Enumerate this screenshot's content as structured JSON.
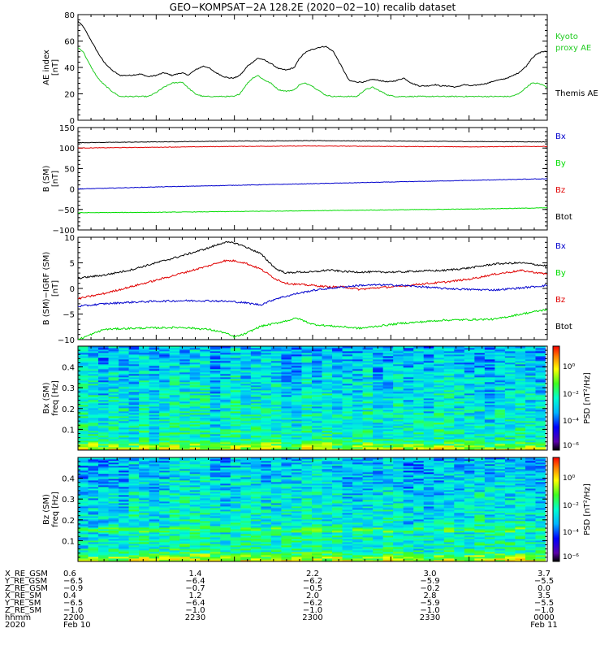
{
  "title": "GEO−KOMPSAT−2A 128.2E (2020−02−10) recalib dataset",
  "colors": {
    "black": "#000000",
    "red": "#e00000",
    "blue": "#0000cc",
    "green": "#00dd00",
    "kyoto": "#22cc22"
  },
  "chart_data": [
    {
      "id": "ae",
      "type": "line",
      "ylabel": "AE index",
      "yunit": "[nT]",
      "ylim": [
        0,
        80
      ],
      "yticks": [
        0,
        20,
        40,
        60,
        80
      ],
      "legend": [
        {
          "label": "Kyoto",
          "color": "#22cc22"
        },
        {
          "label": "proxy AE",
          "color": "#22cc22"
        },
        {
          "label": "Themis AE",
          "color": "#000000"
        }
      ],
      "series": [
        {
          "name": "Themis AE",
          "color": "#000000",
          "x": [
            0,
            2,
            4,
            6,
            8,
            10,
            13,
            16,
            20,
            24,
            27,
            30,
            33,
            36,
            40,
            42,
            45,
            48,
            50,
            52,
            54,
            56,
            58,
            60,
            62,
            63.5,
            65,
            67,
            69,
            71,
            74,
            77,
            80,
            83,
            85,
            87,
            89,
            92,
            95,
            98,
            101,
            104,
            107,
            110,
            113,
            116,
            119,
            122,
            125,
            128,
            131,
            134,
            137,
            139,
            142,
            145,
            148,
            151,
            154,
            157,
            160,
            163,
            166,
            169,
            172,
            174,
            176,
            178,
            180
          ],
          "y": [
            75,
            71,
            64,
            57,
            50,
            44,
            38,
            34,
            34,
            35,
            33,
            34,
            36,
            34,
            36,
            34,
            38,
            41,
            40,
            37,
            35,
            33,
            32,
            32,
            34,
            37,
            41,
            44,
            47,
            46,
            43,
            39,
            38,
            40,
            47,
            51,
            53,
            55,
            56,
            52,
            41,
            30,
            29,
            29,
            31,
            30,
            29,
            30,
            32,
            28,
            26,
            26,
            27,
            26,
            26,
            25,
            27,
            26,
            27,
            28,
            30,
            31,
            33,
            36,
            41,
            47,
            50,
            52,
            52
          ]
        },
        {
          "name": "Kyoto proxy AE",
          "color": "#22cc22",
          "x": [
            0,
            2,
            4,
            6,
            8,
            10,
            13,
            16,
            20,
            24,
            27,
            30,
            33,
            36,
            40,
            42,
            45,
            48,
            50,
            52,
            54,
            56,
            58,
            60,
            62,
            63.5,
            65,
            67,
            69,
            71,
            74,
            77,
            80,
            83,
            85,
            87,
            89,
            92,
            95,
            98,
            101,
            104,
            107,
            110,
            113,
            116,
            119,
            122,
            125,
            128,
            131,
            134,
            137,
            139,
            142,
            145,
            148,
            151,
            154,
            157,
            160,
            163,
            166,
            169,
            172,
            174,
            176,
            178,
            180
          ],
          "y": [
            55,
            52,
            44,
            37,
            31,
            27,
            22,
            18,
            18,
            18,
            18,
            21,
            25,
            28,
            29,
            25,
            20,
            18,
            18,
            18,
            18,
            18,
            18,
            18,
            20,
            24,
            28,
            32,
            34,
            31,
            28,
            23,
            22,
            23,
            27,
            28,
            27,
            23,
            19,
            18,
            18,
            18,
            18,
            23,
            25,
            22,
            19,
            18,
            18,
            18,
            18,
            18,
            18,
            18,
            18,
            18,
            18,
            18,
            18,
            18,
            18,
            18,
            18,
            20,
            25,
            28,
            28,
            27,
            25
          ]
        }
      ]
    },
    {
      "id": "bsm",
      "type": "line",
      "ylabel": "B (SM)",
      "yunit": "[nT]",
      "ylim": [
        -100,
        150
      ],
      "yticks": [
        -100,
        -50,
        0,
        50,
        100,
        150
      ],
      "legend": [
        {
          "label": "Bx",
          "color": "#0000cc"
        },
        {
          "label": "By",
          "color": "#00dd00"
        },
        {
          "label": "Bz",
          "color": "#e00000"
        },
        {
          "label": "Btot",
          "color": "#000000"
        }
      ],
      "series": [
        {
          "name": "Btot",
          "color": "#000000",
          "x": [
            0,
            30,
            60,
            90,
            120,
            150,
            180
          ],
          "y": [
            113,
            115,
            117,
            118,
            117,
            116,
            115
          ]
        },
        {
          "name": "Bz",
          "color": "#e00000",
          "x": [
            0,
            30,
            60,
            90,
            120,
            150,
            180
          ],
          "y": [
            100,
            102,
            104,
            105,
            104,
            103,
            104
          ]
        },
        {
          "name": "Bx",
          "color": "#0000cc",
          "x": [
            0,
            30,
            60,
            90,
            120,
            150,
            180
          ],
          "y": [
            0,
            5,
            9,
            13,
            17,
            21,
            25
          ]
        },
        {
          "name": "By",
          "color": "#00dd00",
          "x": [
            0,
            30,
            60,
            90,
            120,
            150,
            180
          ],
          "y": [
            -58,
            -57,
            -55,
            -53,
            -51,
            -49,
            -46
          ]
        }
      ]
    },
    {
      "id": "dbsm",
      "type": "line",
      "ylabel": "B (SM)−IGRF (SM)",
      "yunit": "[nT]",
      "ylim": [
        -10,
        10
      ],
      "yticks": [
        -10,
        -5,
        0,
        5,
        10
      ],
      "legend": [
        {
          "label": "Bx",
          "color": "#0000cc"
        },
        {
          "label": "By",
          "color": "#00dd00"
        },
        {
          "label": "Bz",
          "color": "#e00000"
        },
        {
          "label": "Btot",
          "color": "#000000"
        }
      ],
      "series": [
        {
          "name": "Btot",
          "color": "#000000",
          "x": [
            0,
            10,
            20,
            30,
            40,
            50,
            56,
            60,
            64,
            70,
            76,
            80,
            84,
            90,
            96,
            102,
            108,
            116,
            124,
            130,
            140,
            150,
            160,
            170,
            180
          ],
          "y": [
            2,
            2.6,
            3.6,
            5,
            6.4,
            7.9,
            9,
            8.9,
            8.2,
            6.8,
            3.8,
            3,
            3.2,
            3.2,
            3.6,
            3.3,
            3.2,
            3.2,
            3.2,
            3.4,
            3.5,
            4,
            4.8,
            5,
            4.4
          ]
        },
        {
          "name": "Bz",
          "color": "#e00000",
          "x": [
            0,
            10,
            20,
            30,
            40,
            50,
            56,
            60,
            64,
            70,
            76,
            80,
            84,
            90,
            96,
            102,
            108,
            116,
            124,
            130,
            140,
            150,
            160,
            170,
            180
          ],
          "y": [
            -2,
            -1,
            0.3,
            1.6,
            3,
            4.4,
            5.4,
            5.4,
            5,
            3.8,
            1.8,
            1,
            0.8,
            0.6,
            0.3,
            0.3,
            -0.2,
            0.2,
            0.4,
            0.8,
            1.2,
            1.8,
            2.8,
            3.5,
            2.8
          ]
        },
        {
          "name": "Bx",
          "color": "#0000cc",
          "x": [
            0,
            10,
            20,
            30,
            40,
            50,
            56,
            60,
            64,
            70,
            76,
            80,
            84,
            90,
            96,
            102,
            108,
            116,
            124,
            130,
            140,
            150,
            160,
            170,
            180
          ],
          "y": [
            -3.5,
            -3,
            -2.7,
            -2.5,
            -2.4,
            -2.4,
            -2.5,
            -2.6,
            -2.8,
            -3.2,
            -2,
            -1.5,
            -1,
            -0.4,
            0,
            0.3,
            0.6,
            0.7,
            0.6,
            0.4,
            0,
            -0.2,
            -0.3,
            0.1,
            0.6
          ]
        },
        {
          "name": "By",
          "color": "#00dd00",
          "x": [
            0,
            10,
            20,
            30,
            40,
            50,
            56,
            60,
            64,
            70,
            76,
            80,
            84,
            90,
            96,
            102,
            108,
            116,
            124,
            130,
            140,
            150,
            160,
            170,
            180
          ],
          "y": [
            -10,
            -8,
            -7.8,
            -7.7,
            -7.6,
            -8,
            -8.6,
            -9.5,
            -8.9,
            -7.4,
            -6.8,
            -6.3,
            -5.8,
            -7,
            -7.3,
            -7.5,
            -7.8,
            -7.3,
            -6.8,
            -6.6,
            -6.2,
            -6.1,
            -6,
            -5,
            -4.1
          ]
        }
      ]
    },
    {
      "id": "bxspec",
      "type": "heatmap",
      "ylabel": "Bx (SM)",
      "yunit": "freq [Hz]",
      "ylim": [
        0,
        0.5
      ],
      "yticks": [
        0.1,
        0.2,
        0.3,
        0.4
      ],
      "colorbar": {
        "label": "PSD [nT²/Hz]",
        "ticks": [
          "10⁰",
          "10⁻²",
          "10⁻⁴",
          "10⁻⁶"
        ]
      }
    },
    {
      "id": "bzspec",
      "type": "heatmap",
      "ylabel": "Bz (SM)",
      "yunit": "freq [Hz]",
      "ylim": [
        0,
        0.5
      ],
      "yticks": [
        0.1,
        0.2,
        0.3,
        0.4
      ],
      "colorbar": {
        "label": "PSD [nT²/Hz]",
        "ticks": [
          "10⁰",
          "10⁻²",
          "10⁻⁴",
          "10⁻⁶"
        ]
      }
    }
  ],
  "xaxis": {
    "row_labels": [
      "X_RE_GSM",
      "Y_RE_GSM",
      "Z_RE_GSM",
      "X_RE_SM",
      "Y_RE_SM",
      "Z_RE_SM",
      "hhmm",
      "2020"
    ],
    "major_ticks_min": [
      0,
      30,
      60,
      90,
      120,
      150,
      180
    ],
    "columns": [
      {
        "min": 0,
        "values": [
          "0.6",
          "−6.5",
          "−0.9",
          "0.4",
          "−6.5",
          "−1.0",
          "2200",
          "Feb 10"
        ]
      },
      {
        "min": 45,
        "values": [
          "1.4",
          "−6.4",
          "−0.7",
          "1.2",
          "−6.4",
          "−1.0",
          "2230",
          ""
        ]
      },
      {
        "min": 90,
        "values": [
          "2.2",
          "−6.2",
          "−0.5",
          "2.0",
          "−6.2",
          "−1.0",
          "2300",
          ""
        ]
      },
      {
        "min": 135,
        "values": [
          "3.0",
          "−5.9",
          "−0.2",
          "2.8",
          "−5.9",
          "−1.0",
          "2330",
          ""
        ]
      },
      {
        "min": 180,
        "values": [
          "3.7",
          "−5.5",
          "0.0",
          "3.5",
          "−5.5",
          "−1.0",
          "0000",
          "Feb 11"
        ]
      }
    ]
  }
}
